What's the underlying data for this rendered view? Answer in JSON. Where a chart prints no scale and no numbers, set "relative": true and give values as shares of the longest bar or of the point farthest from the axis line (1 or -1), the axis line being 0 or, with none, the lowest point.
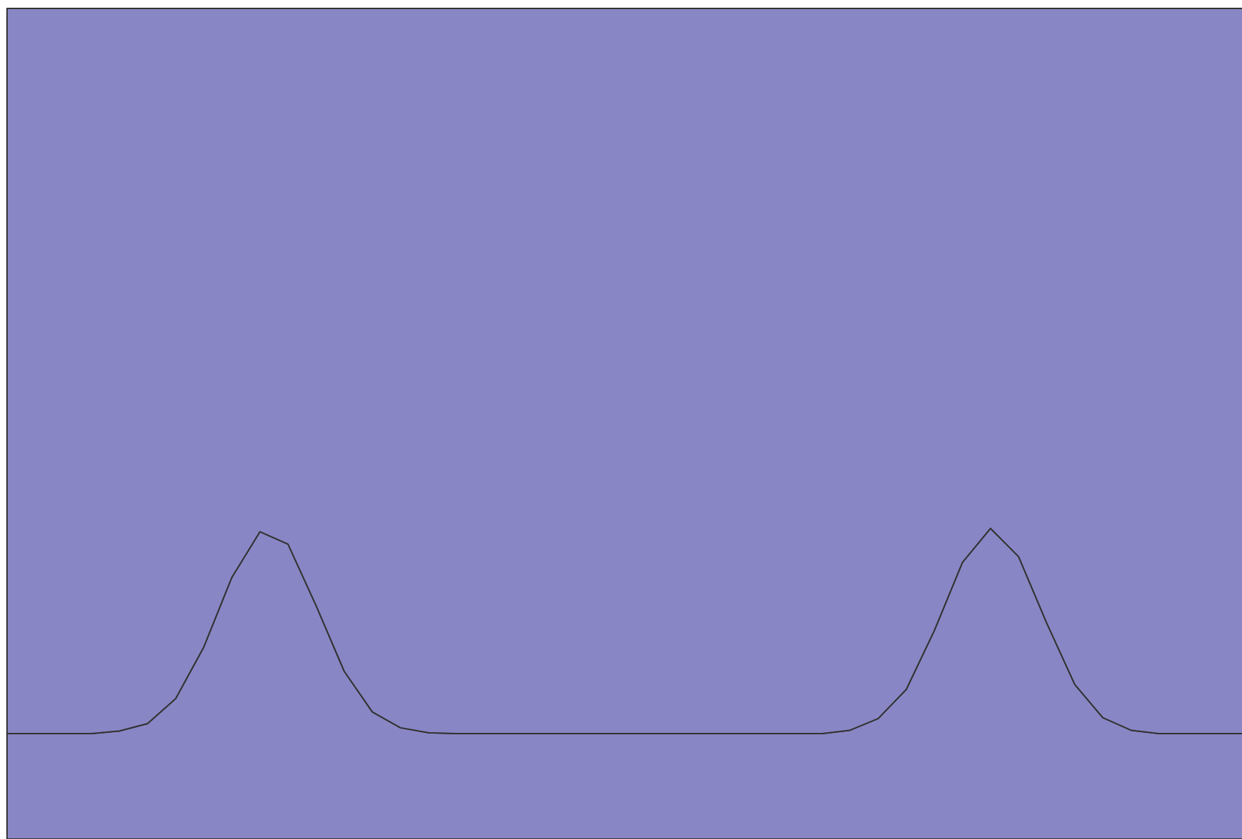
{
  "chart_data": {
    "type": "area",
    "relative": true,
    "stacked": true,
    "categories": [
      null,
      null,
      null,
      null,
      null,
      null,
      null,
      null,
      null,
      null,
      null,
      null,
      null,
      null,
      null,
      null,
      null,
      null,
      null,
      null,
      null,
      null,
      null,
      null,
      null,
      null,
      null,
      null,
      null,
      null,
      null,
      null,
      null,
      null,
      null,
      null,
      null,
      null,
      null,
      null,
      null,
      null,
      null,
      null,
      null
    ],
    "series": [
      {
        "color": "#8886c4",
        "values": [
          0.127,
          0.127,
          0.127,
          0.127,
          0.13,
          0.139,
          0.169,
          0.231,
          0.315,
          0.37,
          0.355,
          0.281,
          0.202,
          0.153,
          0.134,
          0.128,
          0.127,
          0.127,
          0.127,
          0.127,
          0.127,
          0.127,
          0.127,
          0.127,
          0.127,
          0.127,
          0.127,
          0.127,
          0.127,
          0.127,
          0.131,
          0.145,
          0.18,
          0.251,
          0.333,
          0.374,
          0.34,
          0.26,
          0.186,
          0.146,
          0.131,
          0.127,
          0.127,
          0.127,
          0.127
        ]
      },
      {
        "color": "#8886c4",
        "values": [
          0.873,
          0.873,
          0.873,
          0.873,
          0.87,
          0.861,
          0.831,
          0.769,
          0.685,
          0.63,
          0.645,
          0.719,
          0.798,
          0.847,
          0.866,
          0.872,
          0.873,
          0.873,
          0.873,
          0.873,
          0.873,
          0.873,
          0.873,
          0.873,
          0.873,
          0.873,
          0.873,
          0.873,
          0.873,
          0.873,
          0.869,
          0.855,
          0.82,
          0.749,
          0.667,
          0.626,
          0.66,
          0.74,
          0.814,
          0.854,
          0.869,
          0.873,
          0.873,
          0.873,
          0.873
        ]
      }
    ]
  }
}
